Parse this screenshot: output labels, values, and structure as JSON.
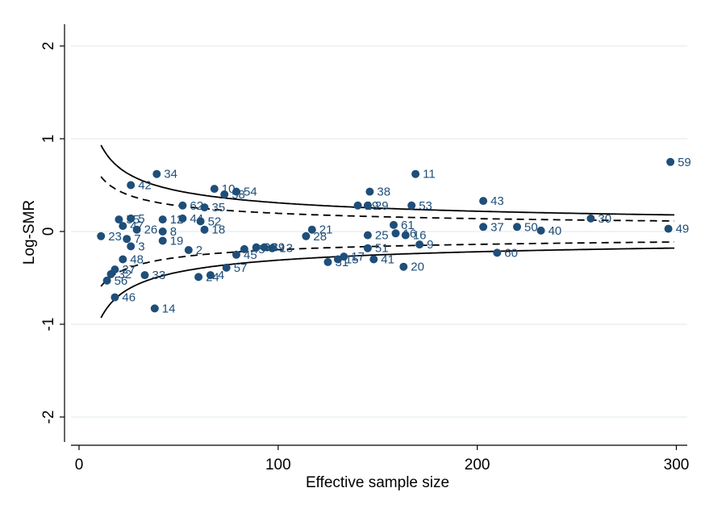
{
  "chart_data": {
    "type": "scatter",
    "title": "",
    "xlabel": "Effective sample size",
    "ylabel": "Log-SMR",
    "xlim": [
      0,
      300
    ],
    "ylim": [
      -2.2,
      2.3
    ],
    "x_ticks": [
      0,
      100,
      200,
      300
    ],
    "y_ticks": [
      -2,
      -1,
      0,
      1,
      2
    ],
    "grid": "horizontal",
    "point_color": "#1f4e79",
    "limit_color": "#000000",
    "limits": {
      "n_min": 11,
      "n_max": 299,
      "outer_z": 3.09,
      "inner_z": 1.96
    },
    "points": [
      {
        "x": 297,
        "y": 0.75,
        "label": "59"
      },
      {
        "x": 169,
        "y": 0.62,
        "label": "11"
      },
      {
        "x": 39,
        "y": 0.62,
        "label": "34"
      },
      {
        "x": 26,
        "y": 0.5,
        "label": "42"
      },
      {
        "x": 68,
        "y": 0.46,
        "label": "10"
      },
      {
        "x": 79,
        "y": 0.43,
        "label": "54"
      },
      {
        "x": 73,
        "y": 0.4,
        "label": "58"
      },
      {
        "x": 146,
        "y": 0.43,
        "label": "38"
      },
      {
        "x": 203,
        "y": 0.33,
        "label": "43"
      },
      {
        "x": 52,
        "y": 0.28,
        "label": "62"
      },
      {
        "x": 63,
        "y": 0.26,
        "label": "35"
      },
      {
        "x": 140,
        "y": 0.28,
        "label": "29"
      },
      {
        "x": 145,
        "y": 0.28,
        "label": "29"
      },
      {
        "x": 167,
        "y": 0.28,
        "label": "53"
      },
      {
        "x": 20,
        "y": 0.13,
        "label": "55"
      },
      {
        "x": 26,
        "y": 0.14,
        "label": "5"
      },
      {
        "x": 42,
        "y": 0.13,
        "label": "12"
      },
      {
        "x": 52,
        "y": 0.14,
        "label": "44"
      },
      {
        "x": 61,
        "y": 0.11,
        "label": "52"
      },
      {
        "x": 22,
        "y": 0.06,
        "label": "47"
      },
      {
        "x": 158,
        "y": 0.07,
        "label": "61"
      },
      {
        "x": 203,
        "y": 0.05,
        "label": "37"
      },
      {
        "x": 220,
        "y": 0.05,
        "label": "50"
      },
      {
        "x": 257,
        "y": 0.14,
        "label": "30"
      },
      {
        "x": 296,
        "y": 0.03,
        "label": "49"
      },
      {
        "x": 29,
        "y": 0.02,
        "label": "26"
      },
      {
        "x": 42,
        "y": 0.0,
        "label": "8"
      },
      {
        "x": 63,
        "y": 0.02,
        "label": "18"
      },
      {
        "x": 117,
        "y": 0.02,
        "label": "21"
      },
      {
        "x": 232,
        "y": 0.01,
        "label": "40"
      },
      {
        "x": 11,
        "y": -0.05,
        "label": "23"
      },
      {
        "x": 24,
        "y": -0.08,
        "label": "7"
      },
      {
        "x": 26,
        "y": -0.16,
        "label": "3"
      },
      {
        "x": 42,
        "y": -0.1,
        "label": "19"
      },
      {
        "x": 55,
        "y": -0.2,
        "label": "2"
      },
      {
        "x": 114,
        "y": -0.05,
        "label": "28"
      },
      {
        "x": 145,
        "y": -0.04,
        "label": "25"
      },
      {
        "x": 159,
        "y": -0.02,
        "label": "16"
      },
      {
        "x": 164,
        "y": -0.04,
        "label": "16"
      },
      {
        "x": 171,
        "y": -0.14,
        "label": "9"
      },
      {
        "x": 83,
        "y": -0.19,
        "label": "45"
      },
      {
        "x": 89,
        "y": -0.17,
        "label": "39"
      },
      {
        "x": 93,
        "y": -0.17,
        "label": "39"
      },
      {
        "x": 97,
        "y": -0.18,
        "label": "13"
      },
      {
        "x": 145,
        "y": -0.18,
        "label": "51"
      },
      {
        "x": 210,
        "y": -0.23,
        "label": "60"
      },
      {
        "x": 22,
        "y": -0.3,
        "label": "48"
      },
      {
        "x": 79,
        "y": -0.25,
        "label": "45"
      },
      {
        "x": 125,
        "y": -0.33,
        "label": "31"
      },
      {
        "x": 130,
        "y": -0.3,
        "label": "15"
      },
      {
        "x": 133,
        "y": -0.27,
        "label": "17"
      },
      {
        "x": 148,
        "y": -0.3,
        "label": "41"
      },
      {
        "x": 163,
        "y": -0.38,
        "label": "20"
      },
      {
        "x": 18,
        "y": -0.41,
        "label": "27"
      },
      {
        "x": 16,
        "y": -0.46,
        "label": "32"
      },
      {
        "x": 14,
        "y": -0.53,
        "label": "56"
      },
      {
        "x": 33,
        "y": -0.47,
        "label": "33"
      },
      {
        "x": 60,
        "y": -0.49,
        "label": "24"
      },
      {
        "x": 66,
        "y": -0.47,
        "label": "4"
      },
      {
        "x": 74,
        "y": -0.39,
        "label": "57"
      },
      {
        "x": 18,
        "y": -0.71,
        "label": "46"
      },
      {
        "x": 38,
        "y": -0.83,
        "label": "14"
      }
    ]
  }
}
